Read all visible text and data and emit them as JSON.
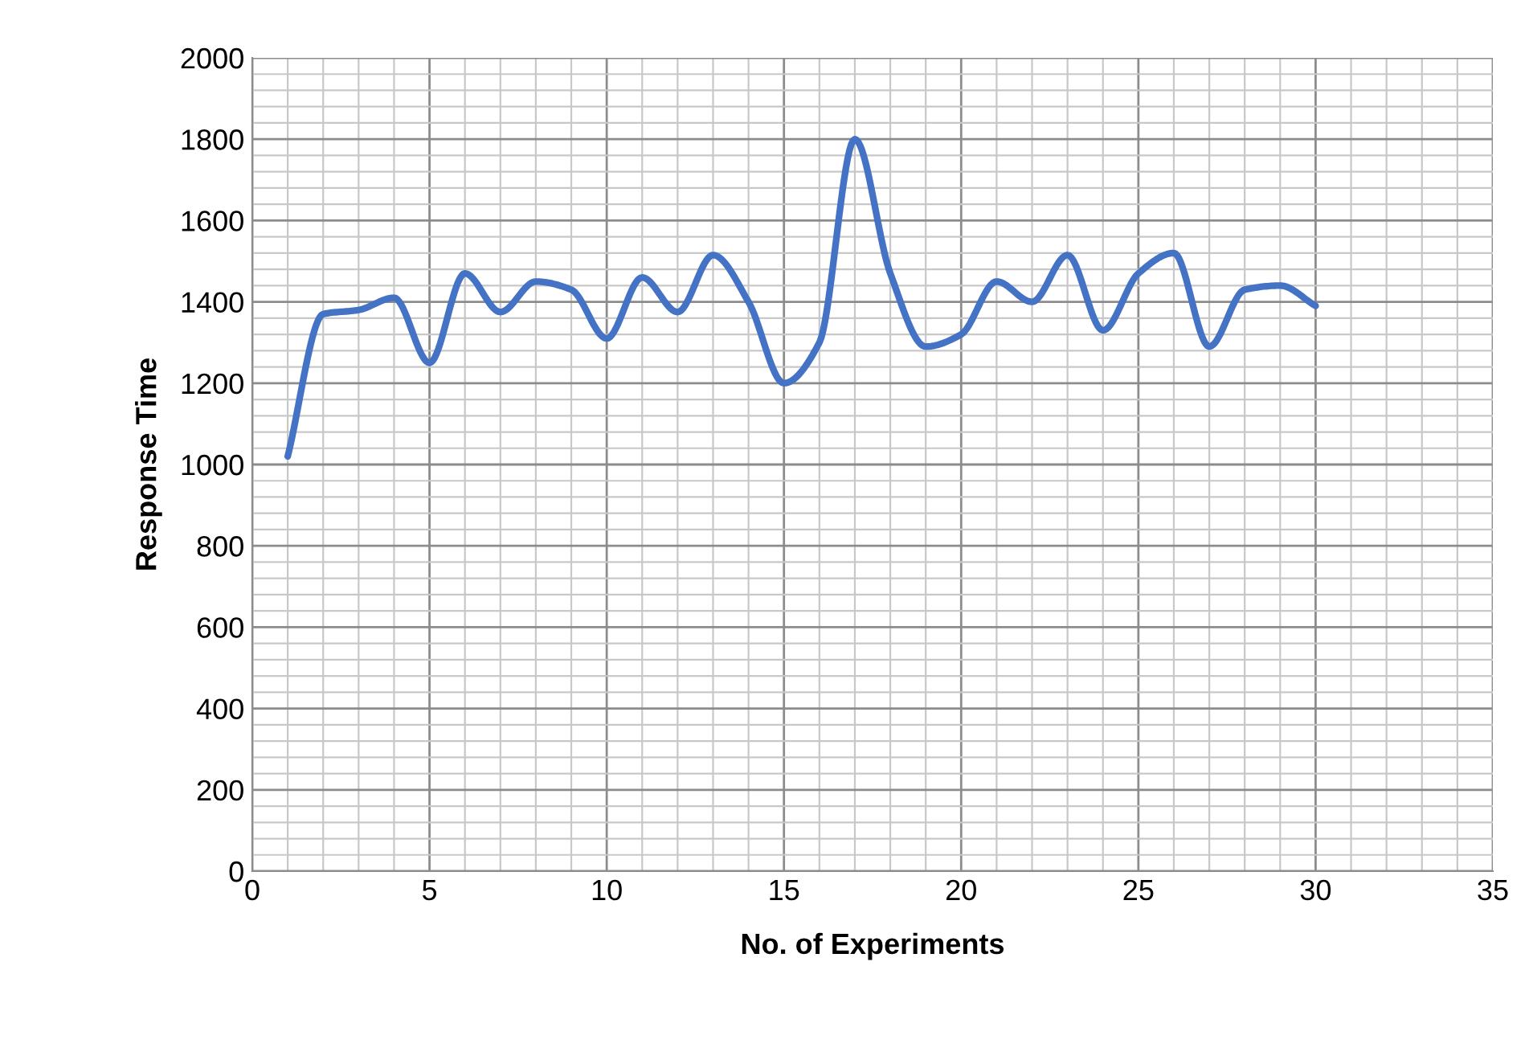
{
  "chart_data": {
    "type": "line",
    "xlabel": "No. of Experiments",
    "ylabel": "Response Time",
    "x": [
      1,
      2,
      3,
      4,
      5,
      6,
      7,
      8,
      9,
      10,
      11,
      12,
      13,
      14,
      15,
      16,
      17,
      18,
      19,
      20,
      21,
      22,
      23,
      24,
      25,
      26,
      27,
      28,
      29,
      30
    ],
    "series": [
      {
        "color": "#4472c4",
        "values": [
          1020,
          1370,
          1380,
          1410,
          1250,
          1470,
          1375,
          1450,
          1430,
          1310,
          1460,
          1375,
          1515,
          1400,
          1200,
          1300,
          1800,
          1470,
          1290,
          1320,
          1450,
          1400,
          1515,
          1330,
          1470,
          1520,
          1290,
          1430,
          1440,
          1390
        ]
      }
    ],
    "xlim": [
      0,
      35
    ],
    "xticks": [
      0,
      5,
      10,
      15,
      20,
      25,
      30,
      35
    ],
    "ylim": [
      0,
      2000
    ],
    "yticks": [
      0,
      200,
      400,
      600,
      800,
      1000,
      1200,
      1400,
      1600,
      1800,
      2000
    ],
    "grid": true,
    "line_style": "solid",
    "marker": "none"
  }
}
